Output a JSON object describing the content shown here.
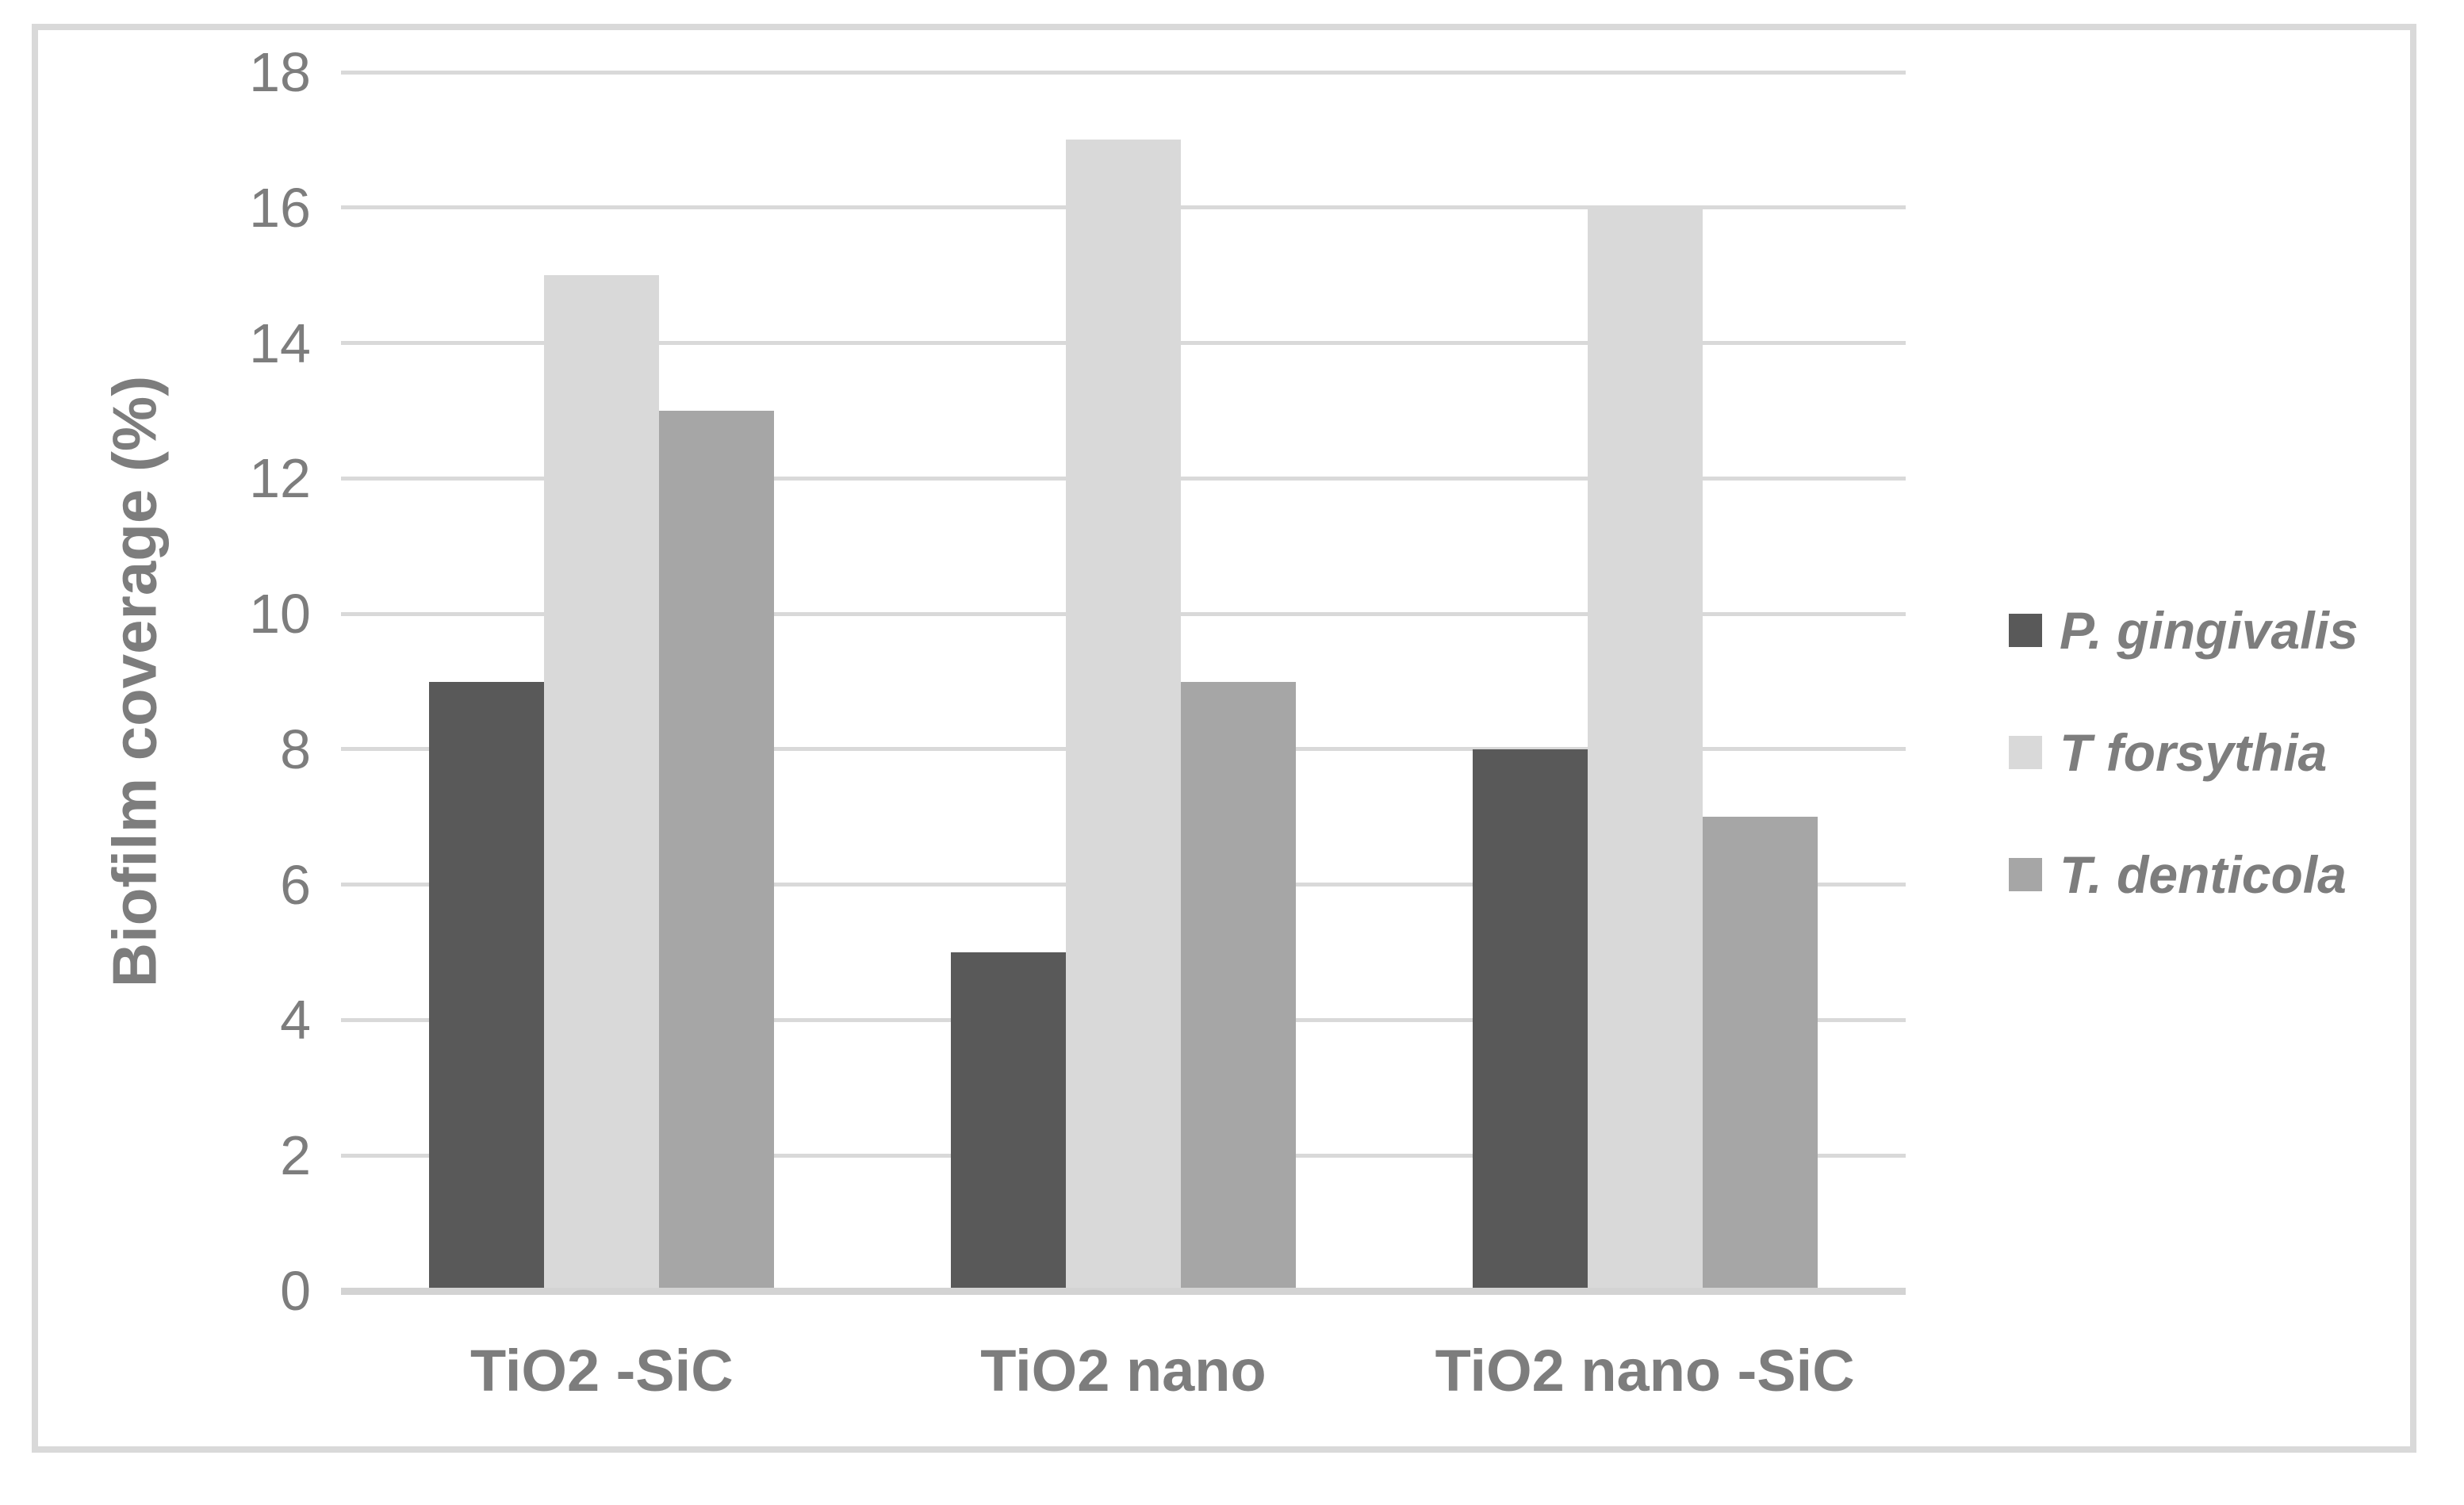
{
  "figure": {
    "background_color": "#ffffff",
    "frame_border_color": "#d9d9d9",
    "gridline_color": "#d9d9d9",
    "baseline_color": "#d3d3d3",
    "text_color": "#7d7d7d"
  },
  "chart_data": {
    "type": "bar",
    "categories": [
      "TiO2 -SiC",
      "TiO2 nano",
      "TiO2 nano -SiC"
    ],
    "series": [
      {
        "name": "P. gingivalis",
        "color": "#595959",
        "values": [
          9,
          5,
          8
        ]
      },
      {
        "name": "T forsythia",
        "color": "#d9d9d9",
        "values": [
          15,
          17,
          16
        ]
      },
      {
        "name": "T. denticola",
        "color": "#a6a6a6",
        "values": [
          13,
          9,
          7
        ]
      }
    ],
    "ylabel": "Biofilm coverage (%)",
    "ylim": [
      0,
      18
    ],
    "ytick_step": 2,
    "ytick_labels": [
      "0",
      "2",
      "4",
      "6",
      "8",
      "10",
      "12",
      "14",
      "16",
      "18"
    ],
    "grid": "horizontal",
    "legend_position": "right-middle"
  }
}
